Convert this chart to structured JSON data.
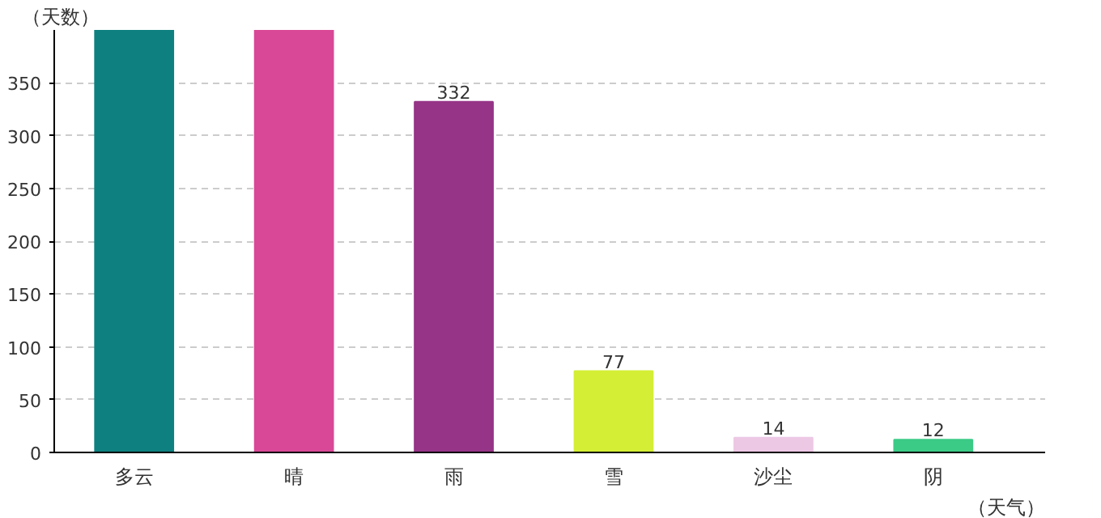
{
  "chart_data": {
    "type": "bar",
    "xlabel": "（天气）",
    "ylabel": "（天数）",
    "categories": [
      "多云",
      "晴",
      "雨",
      "雪",
      "沙尘",
      "阴"
    ],
    "values": [
      400,
      400,
      332,
      77,
      14,
      12
    ],
    "value_labels": [
      null,
      null,
      "332",
      "77",
      "14",
      "12"
    ],
    "colors": [
      "#0e8080",
      "#d94896",
      "#963487",
      "#d4ee35",
      "#ecc8e4",
      "#3bcb86"
    ],
    "ylim": [
      0,
      400
    ],
    "yticks": [
      0,
      50,
      100,
      150,
      200,
      250,
      300,
      350
    ],
    "grid": "y"
  }
}
